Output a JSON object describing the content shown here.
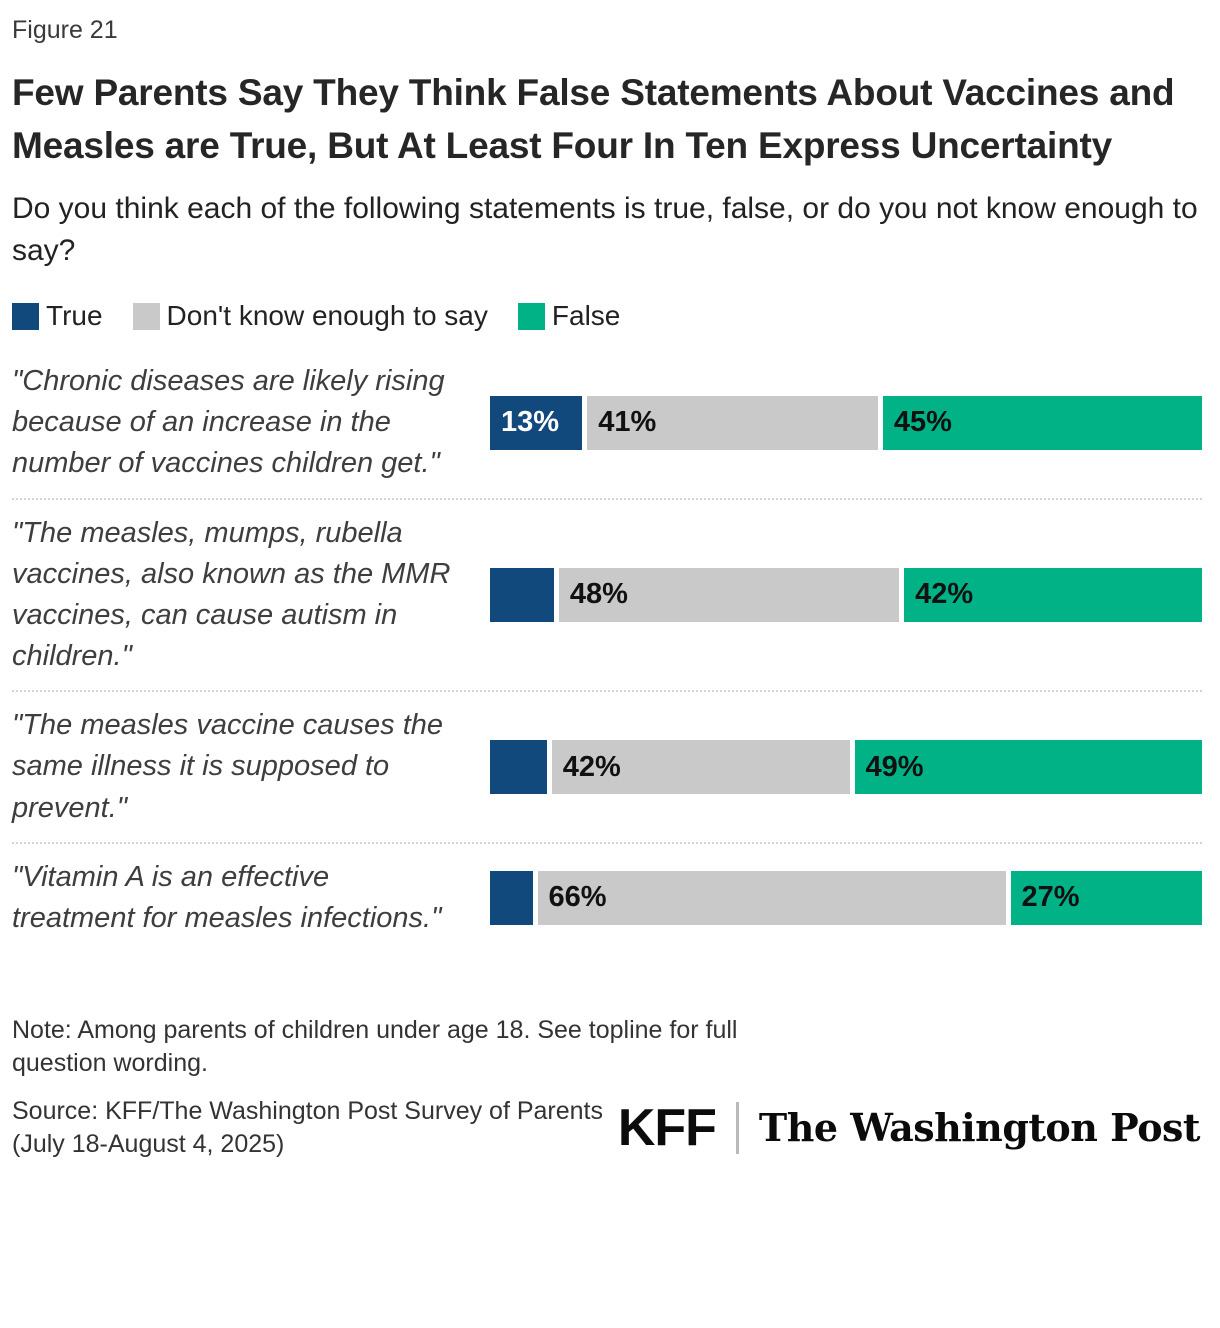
{
  "figure_label": "Figure 21",
  "title": "Few Parents Say They Think False Statements About Vaccines and Measles are True, But At Least Four In Ten Express Uncertainty",
  "subtitle": "Do you think each of the following statements is true, false, or do you not know enough to say?",
  "colors": {
    "true_blue": "#12497D",
    "dont_know_gray": "#C9C9C9",
    "false_green": "#00B286"
  },
  "legend": {
    "items": [
      {
        "label": "True"
      },
      {
        "label": "Don't know enough to say"
      },
      {
        "label": "False"
      }
    ]
  },
  "rows": [
    {
      "statement": "\"Chronic diseases are likely rising because of an increase in the number of vaccines children get.\"",
      "segments": [
        {
          "series": "True",
          "value": 13,
          "label": "13%"
        },
        {
          "series": "Don't know enough to say",
          "value": 41,
          "label": "41%"
        },
        {
          "series": "False",
          "value": 45,
          "label": "45%"
        }
      ]
    },
    {
      "statement": "\"The measles, mumps, rubella vaccines, also known as the MMR vaccines, can cause autism in children.\"",
      "segments": [
        {
          "series": "True",
          "value": 9,
          "label": ""
        },
        {
          "series": "Don't know enough to say",
          "value": 48,
          "label": "48%"
        },
        {
          "series": "False",
          "value": 42,
          "label": "42%"
        }
      ]
    },
    {
      "statement": "\"The measles vaccine causes the same illness it is supposed to prevent.\"",
      "segments": [
        {
          "series": "True",
          "value": 8,
          "label": ""
        },
        {
          "series": "Don't know enough to say",
          "value": 42,
          "label": "42%"
        },
        {
          "series": "False",
          "value": 49,
          "label": "49%"
        }
      ]
    },
    {
      "statement": "\"Vitamin A is an effective treatment for measles infections.\"",
      "segments": [
        {
          "series": "True",
          "value": 6,
          "label": ""
        },
        {
          "series": "Don't know enough to say",
          "value": 66,
          "label": "66%"
        },
        {
          "series": "False",
          "value": 27,
          "label": "27%"
        }
      ]
    }
  ],
  "chart_data": {
    "type": "bar",
    "orientation": "horizontal_stacked",
    "title": "Few Parents Say They Think False Statements About Vaccines and Measles are True, But At Least Four In Ten Express Uncertainty",
    "subtitle": "Do you think each of the following statements is true, false, or do you not know enough to say?",
    "categories": [
      "\"Chronic diseases are likely rising because of an increase in the number of vaccines children get.\"",
      "\"The measles, mumps, rubella vaccines, also known as the MMR vaccines, can cause autism in children.\"",
      "\"The measles vaccine causes the same illness it is supposed to prevent.\"",
      "\"Vitamin A is an effective treatment for measles infections.\""
    ],
    "series": [
      {
        "name": "True",
        "color": "#12497D",
        "values": [
          13,
          9,
          8,
          6
        ],
        "data_labels": [
          "13%",
          "",
          "",
          ""
        ]
      },
      {
        "name": "Don't know enough to say",
        "color": "#C9C9C9",
        "values": [
          41,
          48,
          42,
          66
        ],
        "data_labels": [
          "41%",
          "48%",
          "42%",
          "66%"
        ]
      },
      {
        "name": "False",
        "color": "#00B286",
        "values": [
          45,
          42,
          49,
          27
        ],
        "data_labels": [
          "45%",
          "42%",
          "49%",
          "27%"
        ]
      }
    ],
    "xlim": [
      0,
      100
    ],
    "grid": false,
    "legend_position": "top-left"
  },
  "note": "Note: Among parents of children under age 18. See topline for full question wording.",
  "source": "Source: KFF/The Washington Post Survey of Parents (July 18-August 4, 2025)",
  "footer": {
    "kff_logo": "KFF",
    "wapo_logo": "The Washington Post"
  }
}
